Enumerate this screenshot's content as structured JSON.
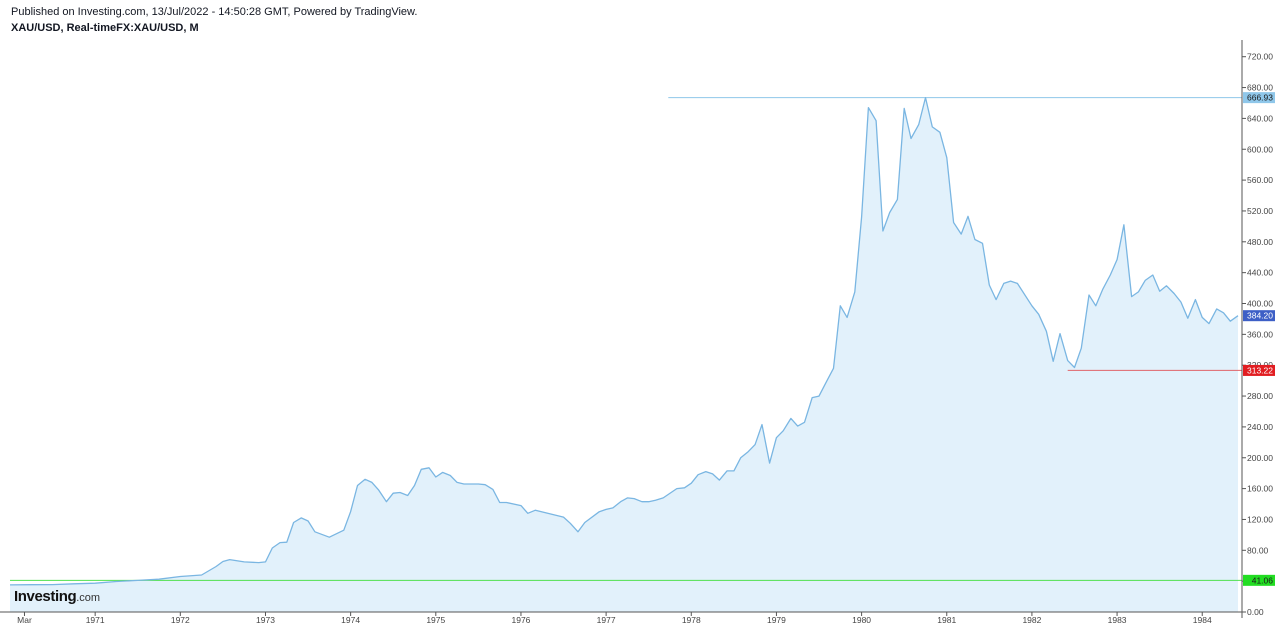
{
  "header": {
    "published": "Published on Investing.com, 13/Jul/2022 - 14:50:28 GMT, Powered by TradingView.",
    "symbol": "XAU/USD, Real-timeFX:XAU/USD, M"
  },
  "logo": {
    "name": "Investing",
    "suffix": ".com"
  },
  "colors": {
    "line": "#7ab6e2",
    "fill": "#e2f1fb",
    "high_line": "#8fc7ea",
    "high_badge": "#8fc7ea",
    "last_badge": "#3d5fc6",
    "low_line": "#e0656a",
    "low_badge": "#e11d21",
    "base_line": "#4fe04f",
    "base_badge": "#22dd22",
    "axis": "#555555",
    "tick_text": "#444444"
  },
  "chart_data": {
    "type": "area",
    "title": "XAU/USD, Real-timeFX:XAU/USD, M",
    "xlabel": "",
    "ylabel": "",
    "ylim": [
      0,
      740
    ],
    "grid": false,
    "x_ticks": [
      "Mar",
      "1971",
      "1972",
      "1973",
      "1974",
      "1975",
      "1976",
      "1977",
      "1978",
      "1979",
      "1980",
      "1981",
      "1982",
      "1983",
      "1984"
    ],
    "x_tick_years": [
      1970.17,
      1971.0,
      1972.0,
      1973.0,
      1974.0,
      1975.0,
      1976.0,
      1977.0,
      1978.0,
      1979.0,
      1980.0,
      1981.0,
      1982.0,
      1983.0,
      1984.0
    ],
    "y_ticks": [
      "720.00",
      "680.00",
      "640.00",
      "600.00",
      "560.00",
      "520.00",
      "480.00",
      "440.00",
      "400.00",
      "360.00",
      "320.00",
      "280.00",
      "240.00",
      "200.00",
      "160.00",
      "120.00",
      "80.00",
      "40.00",
      "0.00"
    ],
    "y_tick_values": [
      720,
      680,
      640,
      600,
      560,
      520,
      480,
      440,
      400,
      360,
      320,
      280,
      240,
      200,
      160,
      120,
      80,
      40,
      0
    ],
    "series": [
      {
        "points": [
          [
            1970.0,
            35.2
          ],
          [
            1970.25,
            35.4
          ],
          [
            1970.5,
            35.5
          ],
          [
            1970.75,
            36.5
          ],
          [
            1971.0,
            37.4
          ],
          [
            1971.25,
            39.5
          ],
          [
            1971.5,
            41.0
          ],
          [
            1971.75,
            42.5
          ],
          [
            1972.0,
            46.0
          ],
          [
            1972.25,
            48.0
          ],
          [
            1972.42,
            59.0
          ],
          [
            1972.5,
            65.5
          ],
          [
            1972.58,
            68.0
          ],
          [
            1972.75,
            65.0
          ],
          [
            1972.92,
            64.0
          ],
          [
            1973.0,
            65.0
          ],
          [
            1973.08,
            83.0
          ],
          [
            1973.17,
            90.0
          ],
          [
            1973.25,
            90.5
          ],
          [
            1973.33,
            116.0
          ],
          [
            1973.42,
            122.0
          ],
          [
            1973.5,
            118.0
          ],
          [
            1973.58,
            104.0
          ],
          [
            1973.75,
            97.0
          ],
          [
            1973.92,
            106.0
          ],
          [
            1974.0,
            130.0
          ],
          [
            1974.08,
            164.0
          ],
          [
            1974.17,
            172.0
          ],
          [
            1974.25,
            168.0
          ],
          [
            1974.33,
            158.0
          ],
          [
            1974.42,
            143.0
          ],
          [
            1974.5,
            154.0
          ],
          [
            1974.58,
            155.0
          ],
          [
            1974.67,
            151.0
          ],
          [
            1974.75,
            164.0
          ],
          [
            1974.83,
            185.0
          ],
          [
            1974.92,
            187.0
          ],
          [
            1975.0,
            175.0
          ],
          [
            1975.08,
            181.0
          ],
          [
            1975.17,
            177.0
          ],
          [
            1975.25,
            168.0
          ],
          [
            1975.33,
            166.0
          ],
          [
            1975.5,
            166.0
          ],
          [
            1975.58,
            165.0
          ],
          [
            1975.67,
            159.0
          ],
          [
            1975.75,
            142.0
          ],
          [
            1975.83,
            142.0
          ],
          [
            1976.0,
            138.0
          ],
          [
            1976.08,
            128.0
          ],
          [
            1976.17,
            132.0
          ],
          [
            1976.5,
            123.0
          ],
          [
            1976.58,
            115.0
          ],
          [
            1976.67,
            104.0
          ],
          [
            1976.75,
            116.0
          ],
          [
            1976.92,
            130.0
          ],
          [
            1977.0,
            133.0
          ],
          [
            1977.08,
            135.0
          ],
          [
            1977.17,
            143.0
          ],
          [
            1977.25,
            148.0
          ],
          [
            1977.33,
            147.0
          ],
          [
            1977.42,
            143.0
          ],
          [
            1977.5,
            143.0
          ],
          [
            1977.58,
            145.0
          ],
          [
            1977.67,
            148.0
          ],
          [
            1977.83,
            160.0
          ],
          [
            1977.92,
            161.0
          ],
          [
            1978.0,
            167.0
          ],
          [
            1978.08,
            178.0
          ],
          [
            1978.17,
            182.0
          ],
          [
            1978.25,
            179.0
          ],
          [
            1978.33,
            171.0
          ],
          [
            1978.42,
            183.0
          ],
          [
            1978.5,
            183.0
          ],
          [
            1978.58,
            200.0
          ],
          [
            1978.67,
            208.0
          ],
          [
            1978.75,
            217.0
          ],
          [
            1978.83,
            243.0
          ],
          [
            1978.92,
            193.0
          ],
          [
            1979.0,
            226.0
          ],
          [
            1979.08,
            235.0
          ],
          [
            1979.17,
            251.0
          ],
          [
            1979.25,
            241.0
          ],
          [
            1979.33,
            246.0
          ],
          [
            1979.42,
            278.0
          ],
          [
            1979.5,
            280.0
          ],
          [
            1979.58,
            297.0
          ],
          [
            1979.67,
            316.0
          ],
          [
            1979.75,
            397.0
          ],
          [
            1979.83,
            382.0
          ],
          [
            1979.92,
            415.0
          ],
          [
            1980.0,
            512.0
          ],
          [
            1980.08,
            654.0
          ],
          [
            1980.17,
            637.0
          ],
          [
            1980.25,
            494.0
          ],
          [
            1980.33,
            518.0
          ],
          [
            1980.42,
            535.0
          ],
          [
            1980.5,
            653.0
          ],
          [
            1980.58,
            614.0
          ],
          [
            1980.67,
            632.0
          ],
          [
            1980.75,
            666.93
          ],
          [
            1980.83,
            629.0
          ],
          [
            1980.92,
            622.0
          ],
          [
            1981.0,
            589.0
          ],
          [
            1981.08,
            505.0
          ],
          [
            1981.17,
            490.0
          ],
          [
            1981.25,
            513.0
          ],
          [
            1981.33,
            483.0
          ],
          [
            1981.42,
            478.0
          ],
          [
            1981.5,
            424.0
          ],
          [
            1981.58,
            405.0
          ],
          [
            1981.67,
            426.0
          ],
          [
            1981.75,
            429.0
          ],
          [
            1981.83,
            426.0
          ],
          [
            1982.0,
            397.0
          ],
          [
            1982.08,
            386.0
          ],
          [
            1982.17,
            364.0
          ],
          [
            1982.25,
            325.0
          ],
          [
            1982.33,
            361.0
          ],
          [
            1982.42,
            326.0
          ],
          [
            1982.5,
            317.0
          ],
          [
            1982.58,
            342.0
          ],
          [
            1982.67,
            411.0
          ],
          [
            1982.75,
            397.0
          ],
          [
            1982.83,
            418.0
          ],
          [
            1982.92,
            437.0
          ],
          [
            1983.0,
            457.0
          ],
          [
            1983.08,
            502.0
          ],
          [
            1983.17,
            409.0
          ],
          [
            1983.25,
            415.0
          ],
          [
            1983.33,
            430.0
          ],
          [
            1983.42,
            437.0
          ],
          [
            1983.5,
            416.0
          ],
          [
            1983.58,
            423.0
          ],
          [
            1983.67,
            413.0
          ],
          [
            1983.75,
            402.0
          ],
          [
            1983.83,
            381.0
          ],
          [
            1983.92,
            405.0
          ],
          [
            1984.0,
            382.0
          ],
          [
            1984.08,
            374.0
          ],
          [
            1984.17,
            393.0
          ],
          [
            1984.25,
            388.0
          ],
          [
            1984.33,
            377.0
          ],
          [
            1984.42,
            384.2
          ]
        ]
      }
    ],
    "annotations": [
      {
        "label": "666.93",
        "value": 666.93,
        "kind": "high",
        "from_year": 1977.73
      },
      {
        "label": "384.20",
        "value": 384.2,
        "kind": "last",
        "from_year": null
      },
      {
        "label": "313.22",
        "value": 313.22,
        "kind": "low",
        "from_year": 1982.42
      },
      {
        "label": "41.06",
        "value": 41.06,
        "kind": "base",
        "from_year": 1970.0
      }
    ]
  }
}
